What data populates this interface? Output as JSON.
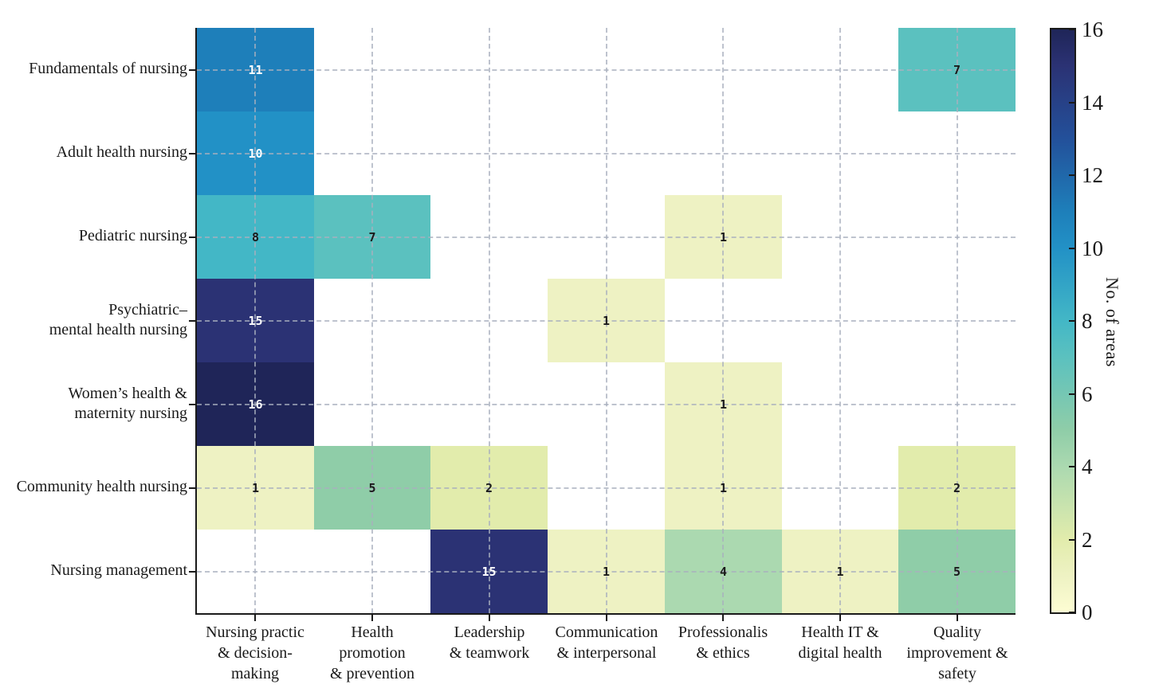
{
  "chart_data": {
    "type": "heatmap",
    "title": "",
    "rows": [
      {
        "label": "Fundamentals of nursing",
        "lines": [
          "Fundamentals of nursing"
        ]
      },
      {
        "label": "Adult health nursing",
        "lines": [
          "Adult health nursing"
        ]
      },
      {
        "label": "Pediatric nursing",
        "lines": [
          "Pediatric nursing"
        ]
      },
      {
        "label": "Psychiatric– mental health nursing",
        "lines": [
          "Psychiatric–",
          "mental health nursing"
        ]
      },
      {
        "label": "Women’s health & maternity nursing",
        "lines": [
          "Women’s health &",
          "maternity nursing"
        ]
      },
      {
        "label": "Community health nursing",
        "lines": [
          "Community health nursing"
        ]
      },
      {
        "label": "Nursing management",
        "lines": [
          "Nursing management"
        ]
      }
    ],
    "columns": [
      {
        "label": "Nursing practic & decision- making",
        "lines": [
          "Nursing practic",
          "& decision-",
          "making"
        ]
      },
      {
        "label": "Health promotion & prevention",
        "lines": [
          "Health",
          "promotion",
          "& prevention"
        ]
      },
      {
        "label": "Leadership & teamwork",
        "lines": [
          "Leadership",
          "& teamwork"
        ]
      },
      {
        "label": "Communication & interpersonal",
        "lines": [
          "Communication",
          "& interpersonal"
        ]
      },
      {
        "label": "Professionalis & ethics",
        "lines": [
          "Professionalis",
          "& ethics"
        ]
      },
      {
        "label": "Health IT & digital health",
        "lines": [
          "Health IT &",
          "digital health"
        ]
      },
      {
        "label": "Quality improvement & safety",
        "lines": [
          "Quality",
          "improvement &",
          "safety"
        ]
      }
    ],
    "values": [
      [
        11,
        null,
        null,
        null,
        null,
        null,
        7
      ],
      [
        10,
        null,
        null,
        null,
        null,
        null,
        null
      ],
      [
        8,
        7,
        null,
        null,
        1,
        null,
        null
      ],
      [
        15,
        null,
        null,
        1,
        null,
        null,
        null
      ],
      [
        16,
        null,
        null,
        null,
        1,
        null,
        null
      ],
      [
        1,
        5,
        2,
        null,
        1,
        null,
        2
      ],
      [
        null,
        null,
        15,
        1,
        4,
        1,
        5
      ]
    ],
    "colorbar": {
      "label": "No. of areas",
      "min": 0,
      "max": 16,
      "ticks": [
        0,
        2,
        4,
        6,
        8,
        10,
        12,
        14,
        16
      ]
    },
    "colormap_stops": [
      [
        0,
        "#fdfdd3"
      ],
      [
        1,
        "#eef2c3"
      ],
      [
        2,
        "#e2ecac"
      ],
      [
        4,
        "#abd9b0"
      ],
      [
        5,
        "#8fcda8"
      ],
      [
        7,
        "#5bc1bf"
      ],
      [
        8,
        "#43b7c6"
      ],
      [
        10,
        "#2291c6"
      ],
      [
        11,
        "#1e7fba"
      ],
      [
        13,
        "#23509a"
      ],
      [
        15,
        "#2b3274"
      ],
      [
        16,
        "#1f2558"
      ]
    ],
    "empty_cell_color": "#ffffff",
    "axis_color": "#1a1a1a",
    "gridline_color": "rgba(168,175,190,0.75)",
    "value_text": {
      "light": "#ffffff",
      "dark": "#1a1a1a",
      "light_threshold": 10
    }
  }
}
